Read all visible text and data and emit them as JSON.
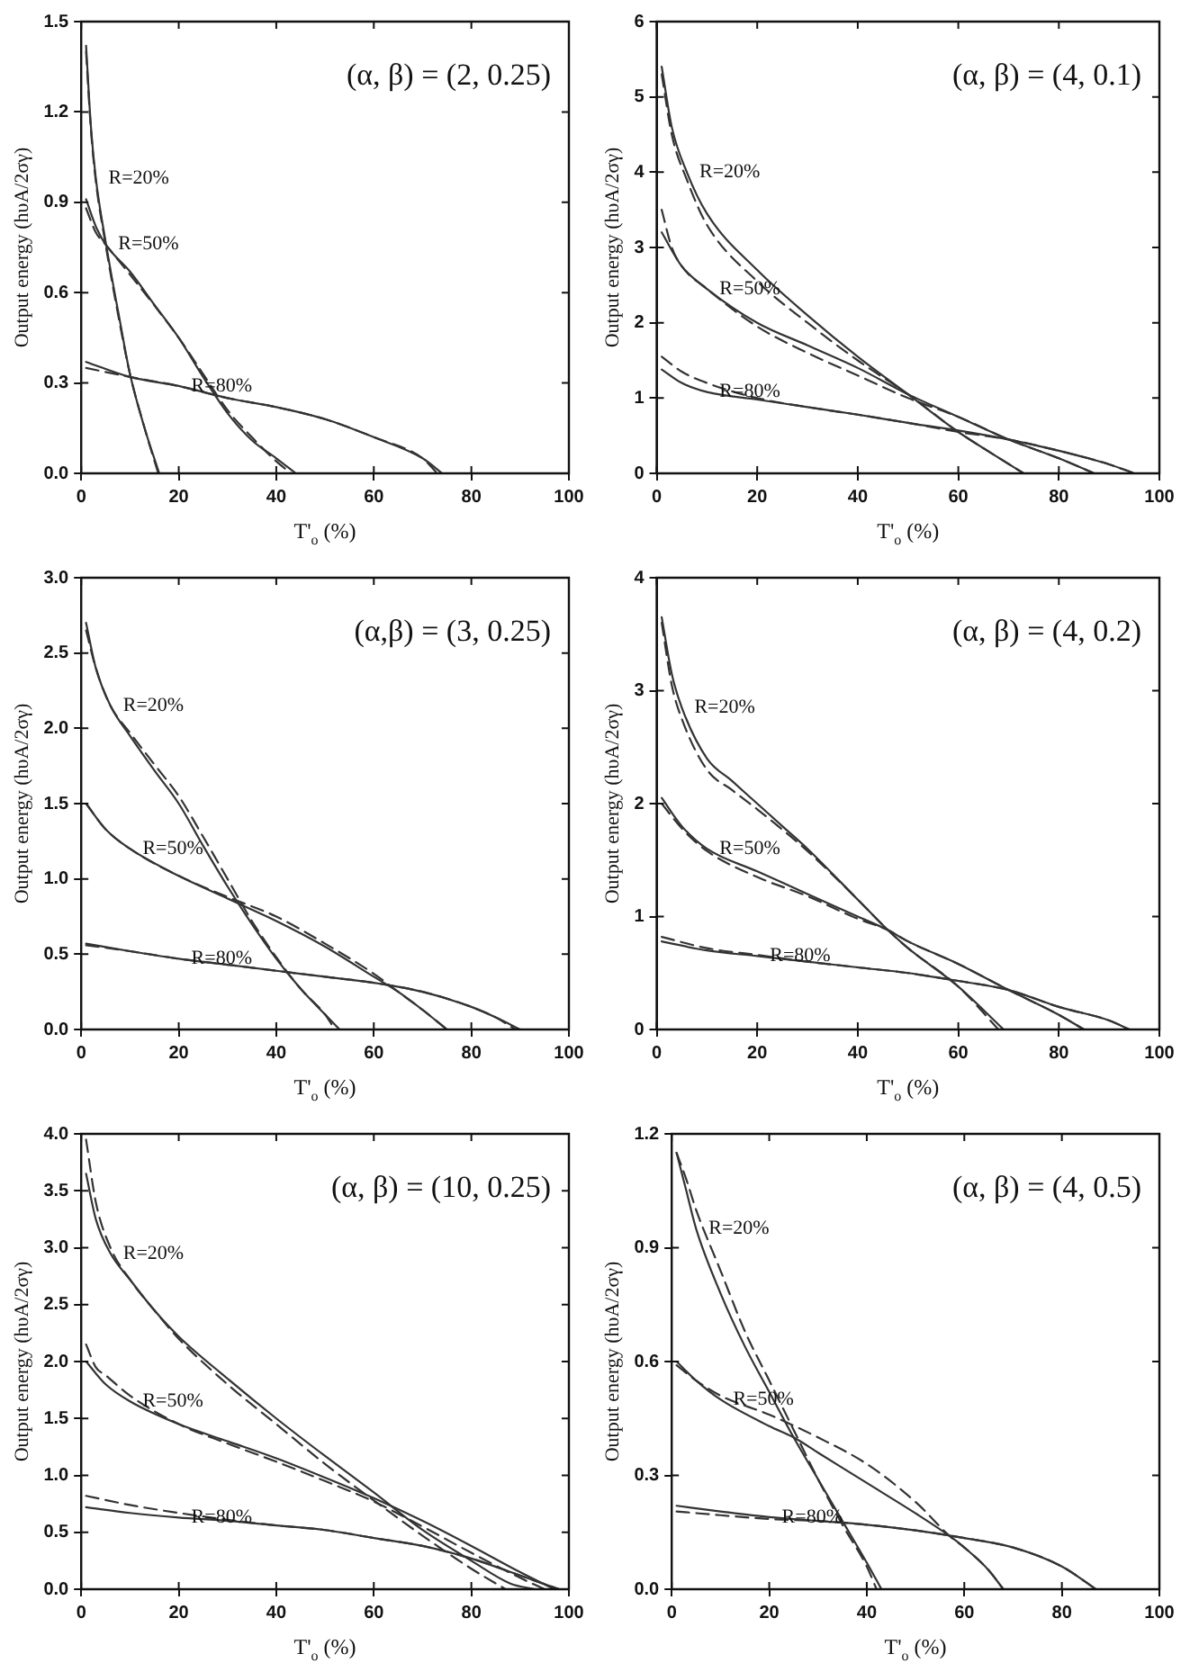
{
  "chart_data": [
    {
      "type": "line",
      "title": "(α, β) = (2, 0.25)",
      "xlabel": "T'$_{o}$ (%)",
      "ylabel": "Output energy (hυA/2σγ)",
      "xlim": [
        0,
        100
      ],
      "xticks": [
        0,
        20,
        40,
        60,
        80,
        100
      ],
      "ylim": [
        0,
        1.5
      ],
      "yticks": [
        {
          "value": 0,
          "label": "0.0"
        },
        0.3,
        0.6,
        0.9,
        1.2,
        1.5
      ],
      "legend": false,
      "marker": "none",
      "series": [
        {
          "name": "R=20%",
          "color": "#333333",
          "line_style": "solid",
          "x": [
            1,
            2,
            3,
            5,
            8,
            10,
            13,
            16
          ],
          "values": [
            1.42,
            1.15,
            0.98,
            0.77,
            0.5,
            0.33,
            0.15,
            0
          ]
        },
        {
          "color": "#333333",
          "line_style": "dashed",
          "x": [
            1,
            2,
            3,
            5,
            8,
            10,
            13,
            15.8
          ],
          "values": [
            1.4,
            1.14,
            0.97,
            0.76,
            0.49,
            0.33,
            0.15,
            0
          ]
        },
        {
          "name": "R=50%",
          "color": "#333333",
          "line_style": "solid",
          "x": [
            1,
            3,
            5,
            10,
            15,
            20,
            25,
            30,
            35,
            40,
            44
          ],
          "values": [
            0.91,
            0.82,
            0.76,
            0.67,
            0.56,
            0.45,
            0.32,
            0.2,
            0.11,
            0.05,
            0
          ]
        },
        {
          "color": "#333333",
          "line_style": "dashed",
          "x": [
            1,
            3,
            5,
            10,
            20,
            25,
            30,
            35,
            40,
            43
          ],
          "values": [
            0.88,
            0.8,
            0.76,
            0.66,
            0.45,
            0.33,
            0.21,
            0.12,
            0.04,
            0
          ]
        },
        {
          "name": "R=80%",
          "color": "#333333",
          "line_style": "solid",
          "x": [
            1,
            10,
            20,
            30,
            40,
            50,
            60,
            70,
            74
          ],
          "values": [
            0.37,
            0.32,
            0.29,
            0.25,
            0.22,
            0.18,
            0.12,
            0.05,
            0
          ]
        },
        {
          "color": "#333333",
          "line_style": "dashed",
          "x": [
            1,
            10,
            20,
            30,
            40,
            50,
            60,
            70,
            73
          ],
          "values": [
            0.35,
            0.32,
            0.29,
            0.25,
            0.22,
            0.18,
            0.12,
            0.05,
            0
          ]
        }
      ]
    },
    {
      "type": "line",
      "title": "(α, β) = (4, 0.1)",
      "xlabel": "T'$_{o}$ (%)",
      "ylabel": "Output energy (hυA/2σγ)",
      "xlim": [
        0,
        100
      ],
      "xticks": [
        0,
        20,
        40,
        60,
        80,
        100
      ],
      "ylim": [
        0,
        6
      ],
      "yticks": [
        0,
        1,
        2,
        3,
        4,
        5,
        6
      ],
      "legend": false,
      "marker": "none",
      "series": [
        {
          "name": "R=20%",
          "color": "#333333",
          "line_style": "solid",
          "x": [
            1,
            3,
            6,
            10,
            20,
            30,
            40,
            50,
            60,
            67,
            73
          ],
          "values": [
            5.4,
            4.6,
            4.0,
            3.45,
            2.7,
            2.1,
            1.55,
            1.05,
            0.55,
            0.25,
            0
          ]
        },
        {
          "color": "#333333",
          "line_style": "dashed",
          "x": [
            1,
            3,
            6,
            10,
            20,
            30,
            40,
            50,
            60,
            67,
            73
          ],
          "values": [
            5.3,
            4.5,
            3.9,
            3.3,
            2.55,
            2.0,
            1.5,
            1.05,
            0.55,
            0.25,
            0
          ]
        },
        {
          "name": "R=50%",
          "color": "#333333",
          "line_style": "solid",
          "x": [
            1,
            5,
            10,
            20,
            30,
            40,
            50,
            60,
            70,
            80,
            87
          ],
          "values": [
            3.2,
            2.75,
            2.45,
            2.0,
            1.7,
            1.4,
            1.05,
            0.75,
            0.45,
            0.2,
            0
          ]
        },
        {
          "color": "#333333",
          "line_style": "dashed",
          "x": [
            1,
            3,
            5,
            10,
            20,
            30,
            40,
            50,
            60,
            70,
            80,
            87
          ],
          "values": [
            3.5,
            3.0,
            2.75,
            2.45,
            1.95,
            1.6,
            1.3,
            1.0,
            0.75,
            0.45,
            0.2,
            0
          ]
        },
        {
          "name": "R=80%",
          "color": "#333333",
          "line_style": "solid",
          "x": [
            1,
            5,
            10,
            20,
            30,
            40,
            50,
            60,
            70,
            80,
            90,
            95
          ],
          "values": [
            1.38,
            1.2,
            1.08,
            0.98,
            0.88,
            0.78,
            0.67,
            0.57,
            0.45,
            0.3,
            0.12,
            0
          ]
        },
        {
          "color": "#333333",
          "line_style": "dashed",
          "x": [
            1,
            5,
            10,
            20,
            30,
            40,
            50,
            60,
            70,
            80,
            90,
            95
          ],
          "values": [
            1.55,
            1.35,
            1.2,
            1.0,
            0.88,
            0.78,
            0.67,
            0.55,
            0.45,
            0.3,
            0.12,
            0
          ]
        }
      ]
    },
    {
      "type": "line",
      "title": "(α,β) = (3, 0.25)",
      "xlabel": "T'$_{o}$ (%)",
      "ylabel": "Output energy (hυA/2σγ)",
      "xlim": [
        0,
        100
      ],
      "xticks": [
        0,
        20,
        40,
        60,
        80,
        100
      ],
      "ylim": [
        0,
        3
      ],
      "yticks": [
        {
          "value": 0,
          "label": "0.0"
        },
        0.5,
        {
          "value": 1,
          "label": "1.0"
        },
        1.5,
        {
          "value": 2,
          "label": "2.0"
        },
        2.5,
        {
          "value": 3,
          "label": "3.0"
        }
      ],
      "legend": false,
      "marker": "none",
      "series": [
        {
          "name": "R=20%",
          "color": "#333333",
          "line_style": "solid",
          "x": [
            1,
            3,
            6,
            10,
            15,
            20,
            25,
            30,
            35,
            40,
            45,
            50,
            53
          ],
          "values": [
            2.7,
            2.4,
            2.15,
            1.95,
            1.72,
            1.5,
            1.22,
            0.95,
            0.7,
            0.47,
            0.27,
            0.1,
            0
          ]
        },
        {
          "color": "#333333",
          "line_style": "dashed",
          "x": [
            1,
            3,
            6,
            10,
            15,
            20,
            25,
            30,
            35,
            40,
            45,
            50,
            52
          ],
          "values": [
            2.65,
            2.4,
            2.15,
            1.97,
            1.76,
            1.55,
            1.28,
            1.0,
            0.72,
            0.48,
            0.27,
            0.1,
            0
          ]
        },
        {
          "name": "R=50%",
          "color": "#333333",
          "line_style": "solid",
          "x": [
            1,
            5,
            10,
            20,
            30,
            40,
            50,
            60,
            65,
            70,
            75
          ],
          "values": [
            1.5,
            1.33,
            1.2,
            1.02,
            0.87,
            0.72,
            0.55,
            0.35,
            0.25,
            0.13,
            0
          ]
        },
        {
          "color": "#333333",
          "line_style": "dashed",
          "x": [
            1,
            5,
            10,
            20,
            30,
            40,
            50,
            60,
            65,
            70,
            75
          ],
          "values": [
            1.5,
            1.33,
            1.2,
            1.02,
            0.88,
            0.75,
            0.57,
            0.37,
            0.25,
            0.13,
            0
          ]
        },
        {
          "name": "R=80%",
          "color": "#333333",
          "line_style": "solid",
          "x": [
            1,
            10,
            20,
            30,
            40,
            50,
            60,
            70,
            80,
            85,
            90
          ],
          "values": [
            0.57,
            0.52,
            0.47,
            0.43,
            0.39,
            0.35,
            0.31,
            0.25,
            0.15,
            0.08,
            0
          ]
        },
        {
          "color": "#333333",
          "line_style": "dashed",
          "x": [
            1,
            10,
            20,
            30,
            40,
            50,
            60,
            70,
            80,
            85,
            89
          ],
          "values": [
            0.56,
            0.52,
            0.47,
            0.43,
            0.39,
            0.35,
            0.31,
            0.25,
            0.15,
            0.08,
            0
          ]
        }
      ]
    },
    {
      "type": "line",
      "title": "(α, β) = (4, 0.2)",
      "xlabel": "T'$_{o}$ (%)",
      "ylabel": "Output energy (hυA/2σγ)",
      "xlim": [
        0,
        100
      ],
      "xticks": [
        0,
        20,
        40,
        60,
        80,
        100
      ],
      "ylim": [
        0,
        4
      ],
      "yticks": [
        0,
        1,
        2,
        3,
        4
      ],
      "legend": false,
      "marker": "none",
      "series": [
        {
          "name": "R=20%",
          "color": "#333333",
          "line_style": "solid",
          "x": [
            1,
            3,
            5,
            10,
            15,
            20,
            25,
            30,
            40,
            46,
            50,
            60,
            69
          ],
          "values": [
            3.65,
            3.15,
            2.85,
            2.4,
            2.2,
            2.0,
            1.8,
            1.6,
            1.15,
            0.88,
            0.72,
            0.38,
            0
          ]
        },
        {
          "color": "#333333",
          "line_style": "dashed",
          "x": [
            1,
            3,
            5,
            10,
            15,
            20,
            25,
            30,
            40,
            46,
            50,
            60,
            68
          ],
          "values": [
            3.6,
            3.05,
            2.75,
            2.3,
            2.12,
            1.95,
            1.77,
            1.58,
            1.15,
            0.88,
            0.72,
            0.38,
            0
          ]
        },
        {
          "name": "R=50%",
          "color": "#333333",
          "line_style": "solid",
          "x": [
            1,
            5,
            10,
            20,
            30,
            40,
            46,
            50,
            60,
            70,
            80,
            85
          ],
          "values": [
            2.05,
            1.8,
            1.6,
            1.4,
            1.2,
            1.0,
            0.88,
            0.78,
            0.58,
            0.35,
            0.13,
            0
          ]
        },
        {
          "color": "#333333",
          "line_style": "dashed",
          "x": [
            1,
            5,
            10,
            20,
            30,
            40,
            46,
            50,
            60,
            70,
            80,
            85
          ],
          "values": [
            2.0,
            1.78,
            1.58,
            1.35,
            1.18,
            0.98,
            0.88,
            0.78,
            0.58,
            0.35,
            0.13,
            0
          ]
        },
        {
          "name": "R=80%",
          "color": "#333333",
          "line_style": "solid",
          "x": [
            1,
            10,
            20,
            30,
            40,
            50,
            60,
            70,
            80,
            90,
            94
          ],
          "values": [
            0.78,
            0.7,
            0.65,
            0.6,
            0.55,
            0.5,
            0.43,
            0.35,
            0.2,
            0.08,
            0
          ]
        },
        {
          "color": "#333333",
          "line_style": "dashed",
          "x": [
            1,
            10,
            20,
            30,
            40,
            50,
            60,
            70,
            80,
            90,
            94
          ],
          "values": [
            0.82,
            0.72,
            0.66,
            0.6,
            0.55,
            0.5,
            0.43,
            0.35,
            0.2,
            0.08,
            0
          ]
        }
      ]
    },
    {
      "type": "line",
      "title": "(α, β) = (10, 0.25)",
      "xlabel": "T'$_{o}$ (%)",
      "ylabel": "Output energy (hυA/2σγ)",
      "xlim": [
        0,
        100
      ],
      "xticks": [
        0,
        20,
        40,
        60,
        80,
        100
      ],
      "ylim": [
        0,
        4
      ],
      "yticks": [
        {
          "value": 0,
          "label": "0.0"
        },
        0.5,
        {
          "value": 1,
          "label": "1.0"
        },
        1.5,
        {
          "value": 2,
          "label": "2.0"
        },
        2.5,
        {
          "value": 3,
          "label": "3.0"
        },
        3.5,
        {
          "value": 4,
          "label": "4.0"
        }
      ],
      "legend": false,
      "marker": "none",
      "series": [
        {
          "name": "R=20%",
          "color": "#333333",
          "line_style": "solid",
          "x": [
            1,
            3,
            6,
            10,
            15,
            20,
            30,
            40,
            50,
            60,
            70,
            80,
            88,
            93
          ],
          "values": [
            3.65,
            3.25,
            2.95,
            2.72,
            2.45,
            2.22,
            1.85,
            1.5,
            1.17,
            0.85,
            0.52,
            0.25,
            0.05,
            0
          ]
        },
        {
          "color": "#333333",
          "line_style": "dashed",
          "x": [
            1,
            3,
            6,
            10,
            15,
            20,
            30,
            40,
            50,
            60,
            70,
            80,
            87
          ],
          "values": [
            3.95,
            3.4,
            3.0,
            2.72,
            2.45,
            2.2,
            1.8,
            1.45,
            1.1,
            0.78,
            0.47,
            0.18,
            0
          ]
        },
        {
          "name": "R=50%",
          "color": "#333333",
          "line_style": "solid",
          "x": [
            1,
            5,
            10,
            20,
            30,
            40,
            50,
            60,
            70,
            80,
            90,
            97
          ],
          "values": [
            2.0,
            1.8,
            1.65,
            1.45,
            1.3,
            1.15,
            0.98,
            0.8,
            0.6,
            0.38,
            0.15,
            0
          ]
        },
        {
          "color": "#333333",
          "line_style": "dashed",
          "x": [
            1,
            3,
            5,
            10,
            20,
            30,
            40,
            50,
            60,
            70,
            80,
            90,
            95
          ],
          "values": [
            2.15,
            1.95,
            1.88,
            1.7,
            1.45,
            1.28,
            1.12,
            0.95,
            0.77,
            0.55,
            0.32,
            0.1,
            0
          ]
        },
        {
          "name": "R=80%",
          "color": "#333333",
          "line_style": "solid",
          "x": [
            1,
            10,
            20,
            30,
            40,
            50,
            60,
            70,
            80,
            90,
            98
          ],
          "values": [
            0.72,
            0.67,
            0.63,
            0.6,
            0.56,
            0.52,
            0.45,
            0.38,
            0.27,
            0.12,
            0
          ]
        },
        {
          "color": "#333333",
          "line_style": "dashed",
          "x": [
            1,
            10,
            20,
            30,
            40,
            50,
            60,
            70,
            80,
            90,
            98
          ],
          "values": [
            0.82,
            0.74,
            0.67,
            0.61,
            0.56,
            0.52,
            0.45,
            0.38,
            0.27,
            0.12,
            0
          ]
        }
      ]
    },
    {
      "type": "line",
      "title": "(α, β) = (4, 0.5)",
      "xlabel": "T'$_{o}$ (%)",
      "ylabel": "Output energy (hυA/2σγ)",
      "xlim": [
        0,
        100
      ],
      "xticks": [
        0,
        20,
        40,
        60,
        80,
        100
      ],
      "ylim": [
        0,
        1.2
      ],
      "yticks": [
        {
          "value": 0,
          "label": "0.0"
        },
        0.3,
        0.6,
        0.9,
        1.2
      ],
      "legend": false,
      "marker": "none",
      "series": [
        {
          "name": "R=20%",
          "color": "#333333",
          "line_style": "solid",
          "x": [
            1,
            3,
            5,
            10,
            15,
            20,
            25,
            30,
            35,
            40,
            43
          ],
          "values": [
            1.15,
            1.05,
            0.95,
            0.78,
            0.64,
            0.52,
            0.4,
            0.29,
            0.18,
            0.07,
            0
          ]
        },
        {
          "color": "#333333",
          "line_style": "dashed",
          "x": [
            1,
            3,
            5,
            10,
            15,
            20,
            25,
            30,
            35,
            40,
            42
          ],
          "values": [
            1.15,
            1.08,
            1.0,
            0.84,
            0.68,
            0.55,
            0.42,
            0.29,
            0.17,
            0.06,
            0
          ]
        },
        {
          "name": "R=50%",
          "color": "#333333",
          "line_style": "solid",
          "x": [
            1,
            5,
            10,
            20,
            25,
            30,
            40,
            50,
            57,
            60,
            65,
            68
          ],
          "values": [
            0.6,
            0.55,
            0.5,
            0.43,
            0.4,
            0.36,
            0.28,
            0.2,
            0.14,
            0.11,
            0.05,
            0
          ]
        },
        {
          "color": "#333333",
          "line_style": "dashed",
          "x": [
            1,
            5,
            10,
            20,
            30,
            40,
            50,
            57,
            60,
            65,
            68
          ],
          "values": [
            0.59,
            0.55,
            0.51,
            0.46,
            0.4,
            0.33,
            0.23,
            0.14,
            0.11,
            0.05,
            0
          ]
        },
        {
          "name": "R=80%",
          "color": "#333333",
          "line_style": "solid",
          "x": [
            1,
            10,
            20,
            30,
            40,
            50,
            60,
            70,
            80,
            87
          ],
          "values": [
            0.22,
            0.205,
            0.19,
            0.18,
            0.17,
            0.155,
            0.135,
            0.11,
            0.06,
            0
          ]
        },
        {
          "color": "#333333",
          "line_style": "dashed",
          "x": [
            1,
            10,
            20,
            30,
            40,
            50,
            60,
            70,
            80,
            87
          ],
          "values": [
            0.205,
            0.195,
            0.185,
            0.18,
            0.17,
            0.155,
            0.135,
            0.11,
            0.06,
            0
          ]
        }
      ]
    }
  ]
}
